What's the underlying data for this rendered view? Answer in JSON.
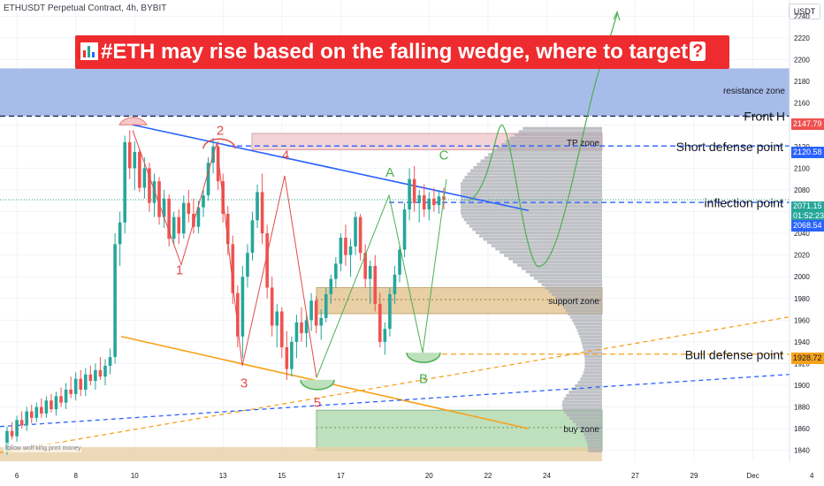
{
  "header": {
    "symbol_line": "ETHUSDT Perpetual Contract, 4h, BYBIT"
  },
  "banner": {
    "text": "#ETH may rise based on the falling wedge, where to target",
    "qmark": "?"
  },
  "currency_button": {
    "label": "USDT"
  },
  "price_labels": {
    "front_h": "2147.79",
    "short_defense": "2120.58",
    "current_price": "2071.15",
    "countdown": "01:52:23",
    "inflection": "2068.54",
    "bull_defense": "1928.72"
  },
  "colors": {
    "bull": "#26a69a",
    "bear": "#ef5350",
    "trend_blue": "#2962ff",
    "orange": "#f7a21b",
    "resistance": "#a3b8e8",
    "tp_zone": "#f3d3d6",
    "support": "#e8cfa5",
    "buy": "#bfe0bd",
    "volume": "#a9acb3",
    "banner": "#ee2b2e"
  },
  "chart_data": {
    "type": "candlestick",
    "title": "ETHUSDT Perpetual Contract, 4h, BYBIT",
    "ylim": [
      1830,
      2255
    ],
    "y_ticks": [
      1840,
      1860,
      1880,
      1900,
      1920,
      1940,
      1960,
      1980,
      2000,
      2020,
      2040,
      2060,
      2080,
      2100,
      2120,
      2140,
      2160,
      2180,
      2200,
      2220,
      2240
    ],
    "x_ticks": [
      {
        "label": "6",
        "i": 2
      },
      {
        "label": "8",
        "i": 14
      },
      {
        "label": "10",
        "i": 26
      },
      {
        "label": "13",
        "i": 44
      },
      {
        "label": "15",
        "i": 56
      },
      {
        "label": "17",
        "i": 68
      },
      {
        "label": "20",
        "i": 86
      },
      {
        "label": "22",
        "i": 98
      },
      {
        "label": "24",
        "i": 110
      },
      {
        "label": "27",
        "i": 128
      },
      {
        "label": "29",
        "i": 140
      },
      {
        "label": "Dec",
        "i": 152
      },
      {
        "label": "4",
        "i": 164
      },
      {
        "label": "6",
        "i": 176
      }
    ],
    "candles": [
      [
        1840,
        1862,
        1836,
        1858
      ],
      [
        1858,
        1866,
        1850,
        1853
      ],
      [
        1853,
        1872,
        1848,
        1868
      ],
      [
        1868,
        1876,
        1860,
        1863
      ],
      [
        1863,
        1880,
        1858,
        1876
      ],
      [
        1876,
        1882,
        1865,
        1870
      ],
      [
        1870,
        1884,
        1866,
        1880
      ],
      [
        1880,
        1888,
        1870,
        1874
      ],
      [
        1874,
        1890,
        1870,
        1886
      ],
      [
        1886,
        1892,
        1875,
        1878
      ],
      [
        1878,
        1894,
        1872,
        1890
      ],
      [
        1890,
        1898,
        1880,
        1884
      ],
      [
        1884,
        1902,
        1878,
        1896
      ],
      [
        1896,
        1908,
        1888,
        1892
      ],
      [
        1892,
        1912,
        1886,
        1906
      ],
      [
        1906,
        1914,
        1890,
        1896
      ],
      [
        1896,
        1916,
        1890,
        1910
      ],
      [
        1910,
        1918,
        1900,
        1904
      ],
      [
        1904,
        1920,
        1896,
        1914
      ],
      [
        1914,
        1926,
        1905,
        1908
      ],
      [
        1908,
        1924,
        1900,
        1918
      ],
      [
        1918,
        1934,
        1910,
        1926
      ],
      [
        1926,
        2040,
        1920,
        2030
      ],
      [
        2030,
        2060,
        2010,
        2050
      ],
      [
        2050,
        2130,
        2040,
        2124
      ],
      [
        2124,
        2135,
        2090,
        2100
      ],
      [
        2100,
        2125,
        2080,
        2115
      ],
      [
        2115,
        2118,
        2078,
        2082
      ],
      [
        2082,
        2110,
        2072,
        2100
      ],
      [
        2100,
        2105,
        2060,
        2068
      ],
      [
        2068,
        2095,
        2055,
        2088
      ],
      [
        2088,
        2092,
        2048,
        2055
      ],
      [
        2055,
        2080,
        2045,
        2072
      ],
      [
        2072,
        2076,
        2028,
        2035
      ],
      [
        2035,
        2060,
        2030,
        2055
      ],
      [
        2055,
        2062,
        2030,
        2040
      ],
      [
        2040,
        2075,
        2035,
        2068
      ],
      [
        2068,
        2080,
        2050,
        2058
      ],
      [
        2058,
        2072,
        2040,
        2046
      ],
      [
        2046,
        2070,
        2040,
        2064
      ],
      [
        2064,
        2080,
        2055,
        2075
      ],
      [
        2075,
        2110,
        2070,
        2105
      ],
      [
        2105,
        2128,
        2095,
        2120
      ],
      [
        2120,
        2125,
        2080,
        2088
      ],
      [
        2088,
        2095,
        2050,
        2058
      ],
      [
        2058,
        2065,
        2020,
        2030
      ],
      [
        2030,
        2038,
        1975,
        1985
      ],
      [
        1985,
        1992,
        1935,
        1945
      ],
      [
        1945,
        2010,
        1925,
        2000
      ],
      [
        2000,
        2030,
        1990,
        2022
      ],
      [
        2022,
        2060,
        2015,
        2052
      ],
      [
        2052,
        2085,
        2045,
        2078
      ],
      [
        2078,
        2095,
        2030,
        2040
      ],
      [
        2040,
        2048,
        1980,
        1990
      ],
      [
        1990,
        2000,
        1945,
        1955
      ],
      [
        1955,
        1975,
        1935,
        1968
      ],
      [
        1968,
        1972,
        1925,
        1935
      ],
      [
        1935,
        1950,
        1905,
        1915
      ],
      [
        1915,
        1945,
        1908,
        1940
      ],
      [
        1940,
        1965,
        1925,
        1958
      ],
      [
        1958,
        1972,
        1940,
        1948
      ],
      [
        1948,
        1966,
        1935,
        1960
      ],
      [
        1960,
        1985,
        1950,
        1978
      ],
      [
        1978,
        1982,
        1948,
        1955
      ],
      [
        1955,
        1970,
        1942,
        1962
      ],
      [
        1962,
        1990,
        1958,
        1984
      ],
      [
        1984,
        2002,
        1975,
        1998
      ],
      [
        1998,
        2018,
        1990,
        2012
      ],
      [
        2012,
        2040,
        2005,
        2036
      ],
      [
        2036,
        2048,
        2010,
        2020
      ],
      [
        2020,
        2035,
        2000,
        2028
      ],
      [
        2028,
        2060,
        2020,
        2055
      ],
      [
        2055,
        2058,
        2015,
        2022
      ],
      [
        2022,
        2030,
        1990,
        1998
      ],
      [
        1998,
        2015,
        1975,
        2010
      ],
      [
        2010,
        2020,
        1968,
        1975
      ],
      [
        1975,
        1985,
        1935,
        1940
      ],
      [
        1940,
        1958,
        1928,
        1952
      ],
      [
        1952,
        1990,
        1945,
        1984
      ],
      [
        1984,
        2010,
        1975,
        2002
      ],
      [
        2002,
        2030,
        1995,
        2025
      ],
      [
        2025,
        2068,
        2018,
        2062
      ],
      [
        2062,
        2100,
        2052,
        2090
      ],
      [
        2090,
        2102,
        2060,
        2068
      ],
      [
        2068,
        2080,
        2050,
        2075
      ],
      [
        2075,
        2085,
        2055,
        2062
      ],
      [
        2062,
        2078,
        2052,
        2072
      ],
      [
        2072,
        2082,
        2060,
        2066
      ],
      [
        2066,
        2080,
        2058,
        2074
      ],
      [
        2074,
        2082,
        2062,
        2071
      ]
    ],
    "annotations": {
      "wave_labels": [
        "1",
        "2",
        "3",
        "4",
        "5",
        "A",
        "B",
        "C"
      ],
      "zone_labels": [
        "resistance zone",
        "TP zone",
        "support zone",
        "buy zone"
      ],
      "line_labels": [
        "Front H",
        "Short defense point",
        "inflection point",
        "Bull defense point"
      ],
      "watermark": "follow wolf king print money"
    }
  }
}
